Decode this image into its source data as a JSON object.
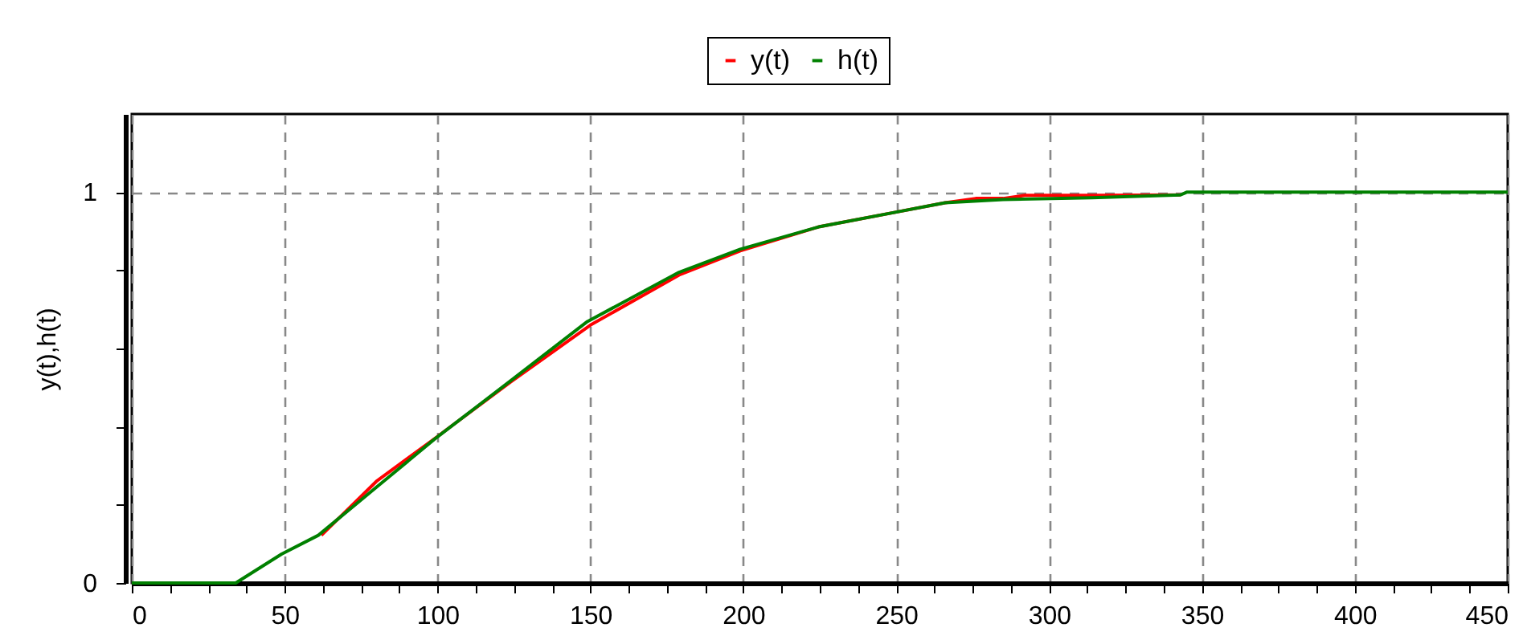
{
  "chart_data": {
    "type": "line",
    "ylabel": "y(t),h(t)",
    "legend": "top",
    "grid": true,
    "xlim": [
      0,
      450
    ],
    "ylim": [
      0,
      1.2
    ],
    "xticks": [
      0,
      {
        "value": 12.5,
        "label": null
      },
      {
        "value": 25,
        "label": null
      },
      {
        "value": 37.5,
        "label": null
      },
      50,
      {
        "value": 62.5,
        "label": null
      },
      {
        "value": 75,
        "label": null
      },
      {
        "value": 87.5,
        "label": null
      },
      100,
      {
        "value": 112.5,
        "label": null
      },
      {
        "value": 125,
        "label": null
      },
      {
        "value": 137.5,
        "label": null
      },
      150,
      {
        "value": 162.5,
        "label": null
      },
      {
        "value": 175,
        "label": null
      },
      {
        "value": 187.5,
        "label": null
      },
      200,
      {
        "value": 212.5,
        "label": null
      },
      {
        "value": 225,
        "label": null
      },
      {
        "value": 237.5,
        "label": null
      },
      250,
      {
        "value": 262.5,
        "label": null
      },
      {
        "value": 275,
        "label": null
      },
      {
        "value": 287.5,
        "label": null
      },
      300,
      {
        "value": 312.5,
        "label": null
      },
      {
        "value": 325,
        "label": null
      },
      {
        "value": 337.5,
        "label": null
      },
      350,
      {
        "value": 362.5,
        "label": null
      },
      {
        "value": 375,
        "label": null
      },
      {
        "value": 387.5,
        "label": null
      },
      400,
      {
        "value": 412.5,
        "label": null
      },
      {
        "value": 425,
        "label": null
      },
      {
        "value": 437.5,
        "label": null
      },
      450
    ],
    "yticks": [
      0,
      {
        "value": 0.2,
        "label": null
      },
      {
        "value": 0.4,
        "label": null
      },
      {
        "value": 0.6,
        "label": null
      },
      {
        "value": 0.8,
        "label": null
      },
      1
    ],
    "series": [
      {
        "name": "y(t)",
        "color": "#ff0000",
        "x": [
          62,
          80,
          100,
          124,
          150,
          179,
          199,
          225,
          250,
          266,
          276,
          285,
          292,
          315,
          343
        ],
        "values": [
          0.122,
          0.26,
          0.375,
          0.515,
          0.66,
          0.788,
          0.85,
          0.912,
          0.949,
          0.973,
          0.984,
          0.984,
          0.992,
          0.992,
          0.993
        ]
      },
      {
        "name": "h(t)",
        "color": "#008000",
        "x": [
          0,
          34,
          49,
          61,
          80,
          99,
          124,
          149,
          179,
          199,
          225,
          250,
          266,
          285,
          314,
          343,
          345,
          450
        ],
        "values": [
          0,
          0,
          0.074,
          0.122,
          0.245,
          0.368,
          0.518,
          0.669,
          0.795,
          0.854,
          0.912,
          0.949,
          0.973,
          0.981,
          0.986,
          0.993,
          1,
          1
        ]
      }
    ]
  }
}
